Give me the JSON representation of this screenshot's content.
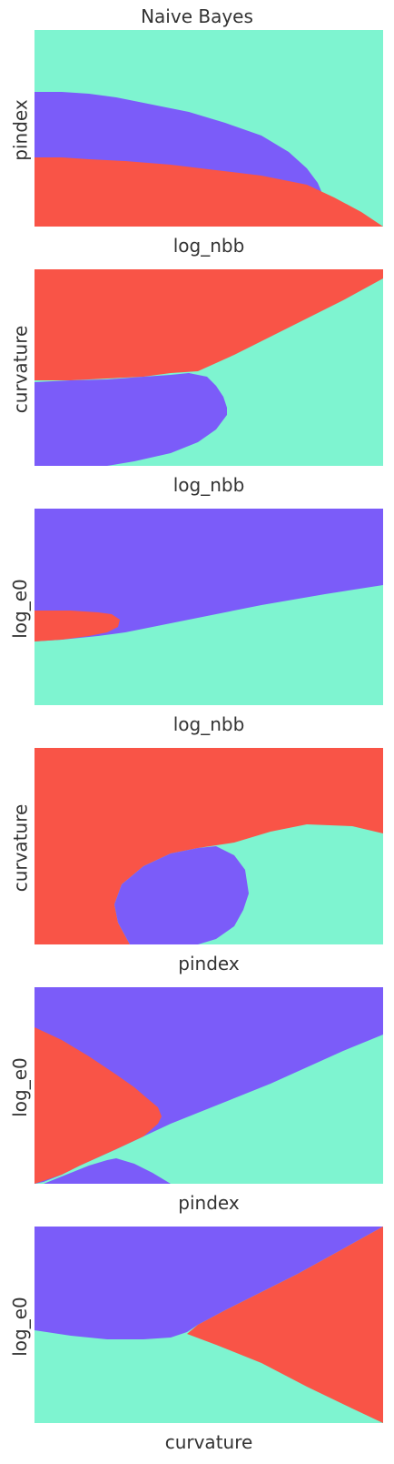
{
  "title": "Naive Bayes",
  "colors": {
    "class_a": "#7b5cf9",
    "class_b": "#7ef4d0",
    "class_c": "#f95447"
  },
  "chart_data": [
    {
      "type": "heatmap",
      "xlabel": "log_nbb",
      "ylabel": "pindex",
      "grid": false
    },
    {
      "type": "heatmap",
      "xlabel": "log_nbb",
      "ylabel": "curvature",
      "grid": false
    },
    {
      "type": "heatmap",
      "xlabel": "log_nbb",
      "ylabel": "log_e0",
      "grid": false
    },
    {
      "type": "heatmap",
      "xlabel": "pindex",
      "ylabel": "curvature",
      "grid": false
    },
    {
      "type": "heatmap",
      "xlabel": "pindex",
      "ylabel": "log_e0",
      "grid": false
    },
    {
      "type": "heatmap",
      "xlabel": "curvature",
      "ylabel": "log_e0",
      "grid": false
    }
  ]
}
